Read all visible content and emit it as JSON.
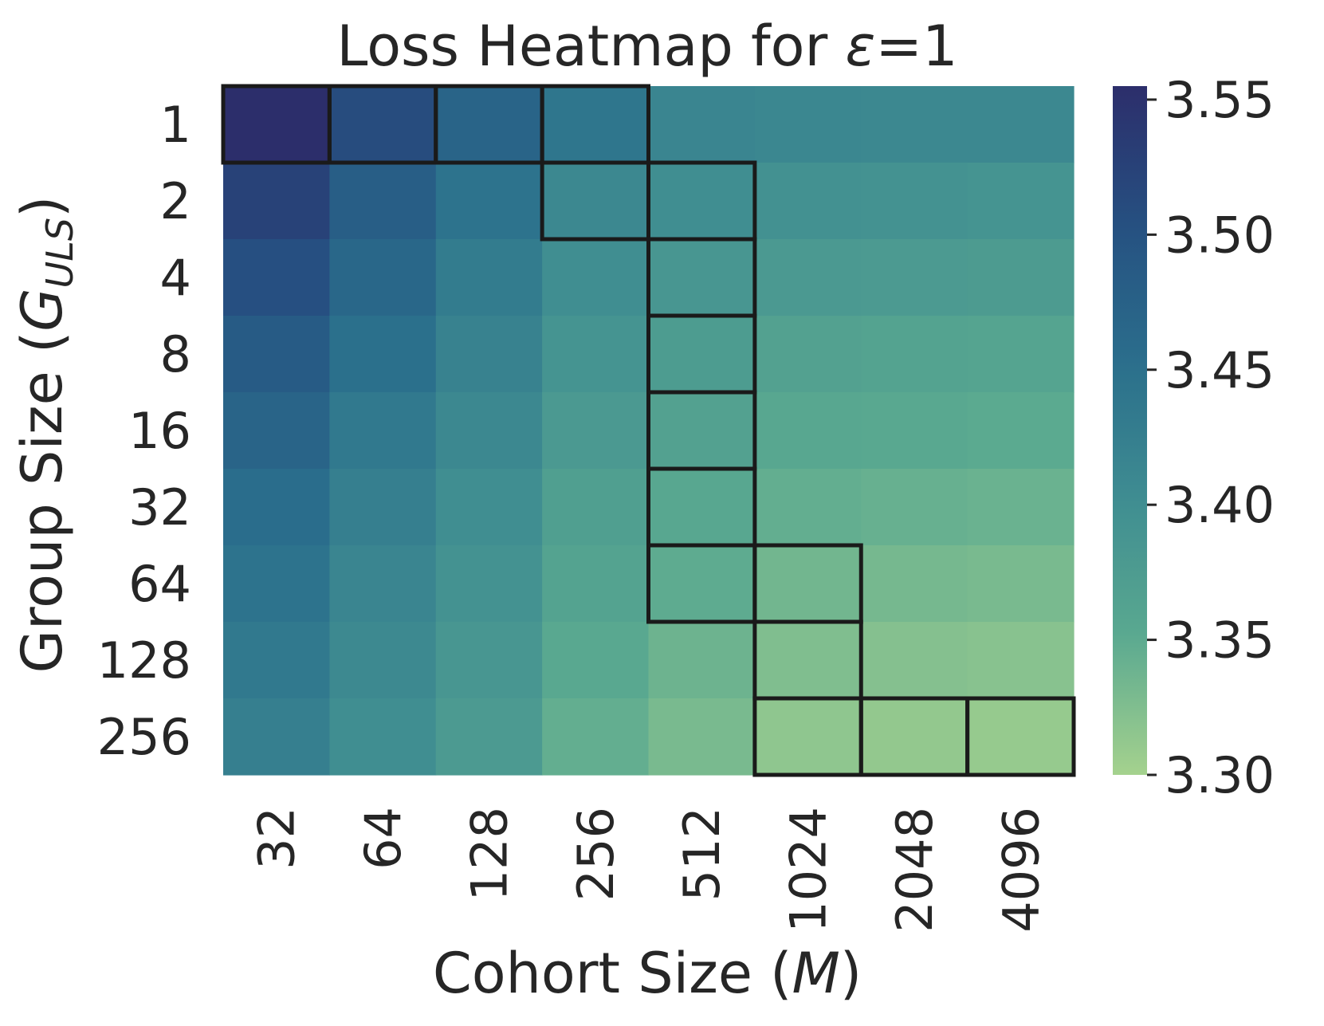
{
  "chart_data": {
    "type": "heatmap",
    "title_prefix": "Loss Heatmap for ",
    "title_symbol": "ε",
    "title_suffix": "=1",
    "xlabel_prefix": "Cohort Size (",
    "xlabel_symbol": "M",
    "xlabel_suffix": ")",
    "ylabel_prefix": "Group Size (",
    "ylabel_symbol": "G",
    "ylabel_subscript": "ULS",
    "ylabel_suffix": ")",
    "x_categories": [
      "32",
      "64",
      "128",
      "256",
      "512",
      "1024",
      "2048",
      "4096"
    ],
    "y_categories": [
      "1",
      "2",
      "4",
      "8",
      "16",
      "32",
      "64",
      "128",
      "256"
    ],
    "values": [
      [
        3.555,
        3.51,
        3.47,
        3.44,
        3.415,
        3.412,
        3.41,
        3.41
      ],
      [
        3.525,
        3.48,
        3.445,
        3.41,
        3.4,
        3.395,
        3.392,
        3.39
      ],
      [
        3.505,
        3.465,
        3.43,
        3.4,
        3.385,
        3.38,
        3.378,
        3.376
      ],
      [
        3.485,
        3.45,
        3.42,
        3.39,
        3.375,
        3.365,
        3.362,
        3.36
      ],
      [
        3.47,
        3.435,
        3.41,
        3.38,
        3.365,
        3.355,
        3.352,
        3.35
      ],
      [
        3.455,
        3.425,
        3.4,
        3.37,
        3.355,
        3.345,
        3.342,
        3.34
      ],
      [
        3.445,
        3.415,
        3.393,
        3.362,
        3.348,
        3.335,
        3.332,
        3.33
      ],
      [
        3.435,
        3.408,
        3.385,
        3.352,
        3.338,
        3.325,
        3.322,
        3.32
      ],
      [
        3.425,
        3.4,
        3.378,
        3.345,
        3.33,
        3.315,
        3.312,
        3.31
      ]
    ],
    "highlighted_cells": [
      [
        0,
        0
      ],
      [
        0,
        1
      ],
      [
        0,
        2
      ],
      [
        0,
        3
      ],
      [
        1,
        3
      ],
      [
        1,
        4
      ],
      [
        2,
        4
      ],
      [
        3,
        4
      ],
      [
        4,
        4
      ],
      [
        5,
        4
      ],
      [
        6,
        4
      ],
      [
        6,
        5
      ],
      [
        7,
        5
      ],
      [
        8,
        5
      ],
      [
        8,
        6
      ],
      [
        8,
        7
      ]
    ],
    "colorbar": {
      "vmin": 3.3,
      "vmax": 3.555,
      "ticks": [
        3.3,
        3.35,
        3.4,
        3.45,
        3.5,
        3.55
      ],
      "tick_labels": [
        "3.30",
        "3.35",
        "3.40",
        "3.45",
        "3.50",
        "3.55"
      ],
      "colormap": [
        "#a5d28e",
        "#5aa990",
        "#3f8d91",
        "#2a6e8c",
        "#265081",
        "#2c2e6b"
      ]
    },
    "grid": false
  }
}
